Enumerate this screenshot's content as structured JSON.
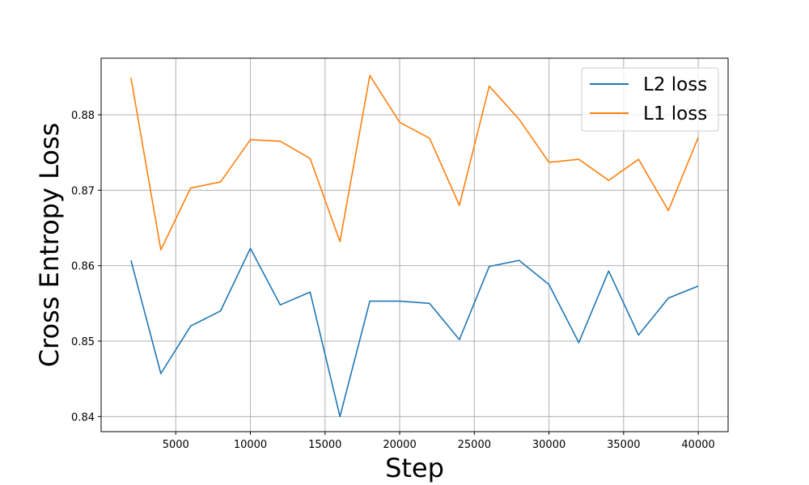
{
  "chart_data": {
    "type": "line",
    "title": "",
    "xlabel": "Step",
    "ylabel": "Cross Entropy Loss",
    "xlim": [
      0,
      42000
    ],
    "ylim": [
      0.838,
      0.8875
    ],
    "xticks": [
      5000,
      10000,
      15000,
      20000,
      25000,
      30000,
      35000,
      40000
    ],
    "yticks": [
      0.84,
      0.85,
      0.86,
      0.87,
      0.88
    ],
    "xtick_labels": [
      "5000",
      "10000",
      "15000",
      "20000",
      "25000",
      "30000",
      "35000",
      "40000"
    ],
    "ytick_labels": [
      "0.84",
      "0.85",
      "0.86",
      "0.87",
      "0.88"
    ],
    "grid": true,
    "legend_position": "top-right",
    "x": [
      2000,
      4000,
      6000,
      8000,
      10000,
      12000,
      14000,
      16000,
      18000,
      20000,
      22000,
      24000,
      26000,
      28000,
      30000,
      32000,
      34000,
      36000,
      38000,
      40000
    ],
    "series": [
      {
        "name": "L2 loss",
        "color": "#1f77b4",
        "values": [
          0.8607,
          0.8457,
          0.852,
          0.854,
          0.8623,
          0.8548,
          0.8565,
          0.84,
          0.8553,
          0.8553,
          0.855,
          0.8502,
          0.8599,
          0.8607,
          0.8575,
          0.8498,
          0.8593,
          0.8508,
          0.8557,
          0.8573
        ]
      },
      {
        "name": "L1 loss",
        "color": "#ff7f0e",
        "values": [
          0.8849,
          0.8621,
          0.8703,
          0.8711,
          0.8767,
          0.8765,
          0.8742,
          0.8632,
          0.8852,
          0.879,
          0.8769,
          0.868,
          0.8838,
          0.8794,
          0.8737,
          0.8741,
          0.8713,
          0.8741,
          0.8673,
          0.877
        ]
      }
    ]
  }
}
